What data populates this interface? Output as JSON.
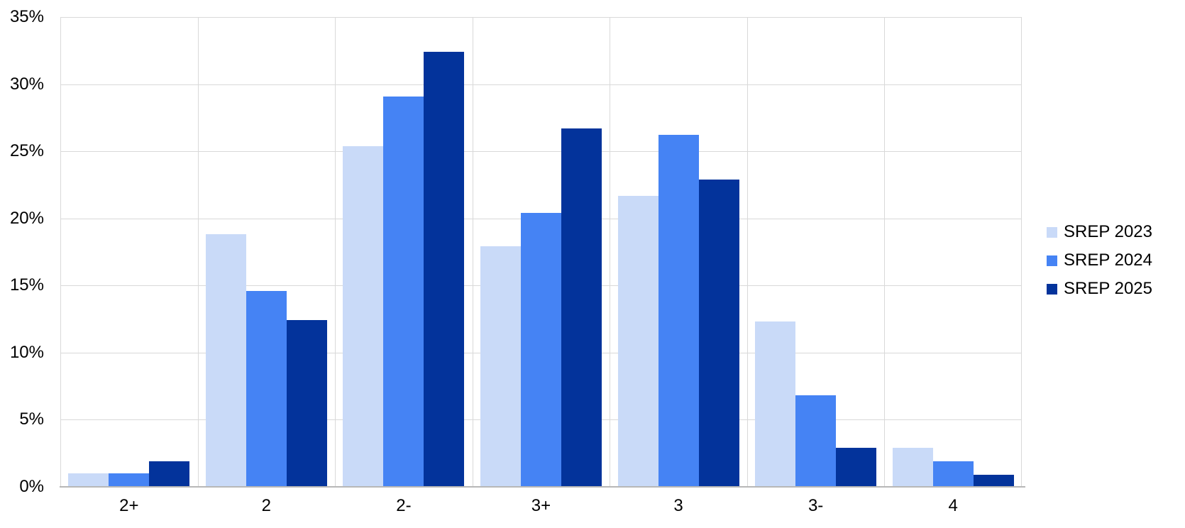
{
  "chart_data": {
    "type": "bar",
    "categories": [
      "2+",
      "2",
      "2-",
      "3+",
      "3",
      "3-",
      "4"
    ],
    "series": [
      {
        "name": "SREP 2023",
        "color": "#C9DAF8",
        "values": [
          1.0,
          18.8,
          25.4,
          17.9,
          21.7,
          12.3,
          2.9
        ]
      },
      {
        "name": "SREP 2024",
        "color": "#4583F4",
        "values": [
          1.0,
          14.6,
          29.1,
          20.4,
          26.2,
          6.8,
          1.9
        ]
      },
      {
        "name": "SREP 2025",
        "color": "#03339B",
        "values": [
          1.9,
          12.4,
          32.4,
          26.7,
          22.9,
          2.9,
          0.9
        ]
      }
    ],
    "xlabel": "",
    "ylabel": "",
    "ylim": [
      0,
      35
    ],
    "ytick_step": 5,
    "ytick_labels": [
      "0%",
      "5%",
      "10%",
      "15%",
      "20%",
      "25%",
      "30%",
      "35%"
    ],
    "grid": true,
    "legend_position": "right"
  },
  "colors": {
    "gridline": "#D9D9D9",
    "axis_line": "#B7B7B7",
    "background": "#FFFFFF",
    "text": "#000000"
  }
}
